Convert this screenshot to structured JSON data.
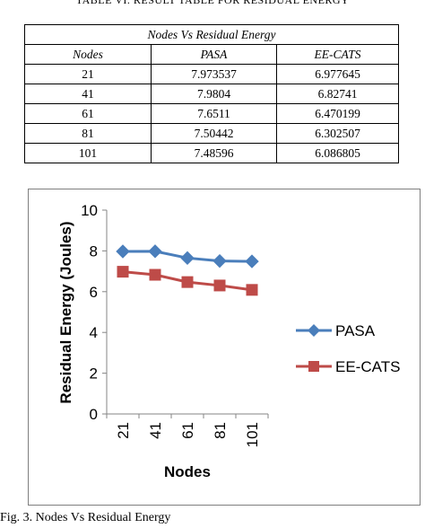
{
  "table": {
    "caption": "TABLE VI. RESULT TABLE FOR RESIDUAL ENERGY",
    "title": "Nodes Vs Residual Energy",
    "headers": [
      "Nodes",
      "PASA",
      "EE-CATS"
    ],
    "rows": [
      [
        "21",
        "7.973537",
        "6.977645"
      ],
      [
        "41",
        "7.9804",
        "6.82741"
      ],
      [
        "61",
        "7.6511",
        "6.470199"
      ],
      [
        "81",
        "7.50442",
        "6.302507"
      ],
      [
        "101",
        "7.48596",
        "6.086805"
      ]
    ]
  },
  "chart_data": {
    "type": "line",
    "categories": [
      "21",
      "41",
      "61",
      "81",
      "101"
    ],
    "series": [
      {
        "name": "PASA",
        "values": [
          7.973537,
          7.9804,
          7.6511,
          7.50442,
          7.48596
        ],
        "color": "#4a7ebb",
        "marker": "diamond"
      },
      {
        "name": "EE-CATS",
        "values": [
          6.977645,
          6.82741,
          6.470199,
          6.302507,
          6.086805
        ],
        "color": "#be4b48",
        "marker": "square"
      }
    ],
    "xlabel": "Nodes",
    "ylabel": "Residual Energy (Joules)",
    "ylim": [
      0,
      10
    ],
    "yticks": [
      "0",
      "2",
      "4",
      "6",
      "8",
      "10"
    ],
    "grid": false,
    "legend": "right"
  },
  "figure": {
    "caption": "Fig. 3. Nodes Vs Residual Energy"
  }
}
